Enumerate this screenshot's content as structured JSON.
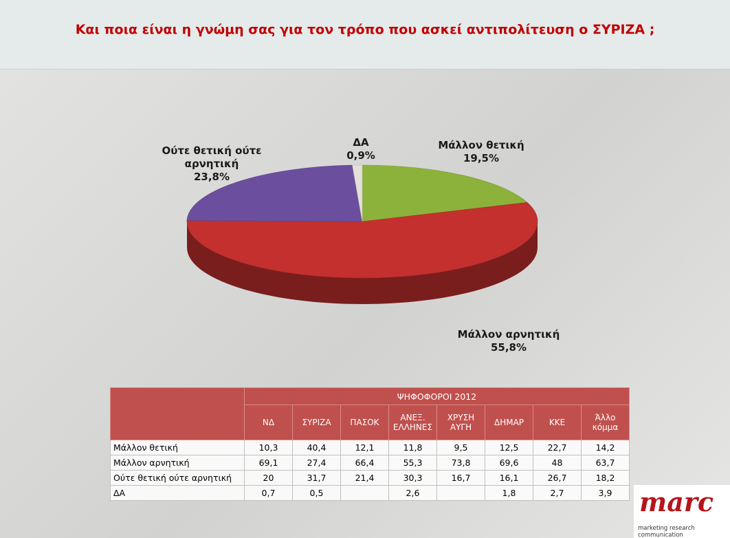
{
  "chart_data": {
    "type": "pie",
    "title": "Και ποια είναι η γνώμη σας για τον τρόπο που ασκεί  αντιπολίτευση ο ΣΥΡΙΖΑ ;",
    "categories": [
      "Μάλλον θετική",
      "Μάλλον αρνητική",
      "Ούτε θετική ούτε αρνητική",
      "ΔΑ"
    ],
    "values": [
      19.5,
      55.8,
      23.8,
      0.9
    ],
    "value_labels": [
      "19,5%",
      "55,8%",
      "23,8%",
      "0,9%"
    ],
    "colors": [
      "#8cb23c",
      "#c3302e",
      "#6b4f9e",
      "#e4e0d8"
    ]
  },
  "table": {
    "group_header": "ΨΗΦΟΦΟΡΟΙ 2012",
    "columns": [
      "ΝΔ",
      "ΣΥΡΙΖΑ",
      "ΠΑΣΟΚ",
      "ΑΝΕΞ. ΕΛΛΗΝΕΣ",
      "ΧΡΥΣΗ ΑΥΓΗ",
      "ΔΗΜΑΡ",
      "ΚΚΕ",
      "Άλλο κόμμα"
    ],
    "rows": [
      {
        "label": "Μάλλον θετική",
        "cells": [
          "10,3",
          "40,4",
          "12,1",
          "11,8",
          "9,5",
          "12,5",
          "22,7",
          "14,2"
        ]
      },
      {
        "label": "Μάλλον αρνητική",
        "cells": [
          "69,1",
          "27,4",
          "66,4",
          "55,3",
          "73,8",
          "69,6",
          "48",
          "63,7"
        ]
      },
      {
        "label": "Ούτε θετική ούτε αρνητική",
        "cells": [
          "20",
          "31,7",
          "21,4",
          "30,3",
          "16,7",
          "16,1",
          "26,7",
          "18,2"
        ]
      },
      {
        "label": "ΔΑ",
        "cells": [
          "0,7",
          "0,5",
          null,
          "2,6",
          null,
          "1,8",
          "2,7",
          "3,9"
        ]
      }
    ]
  },
  "logo": {
    "name": "marc",
    "tagline": "marketing research communication"
  }
}
